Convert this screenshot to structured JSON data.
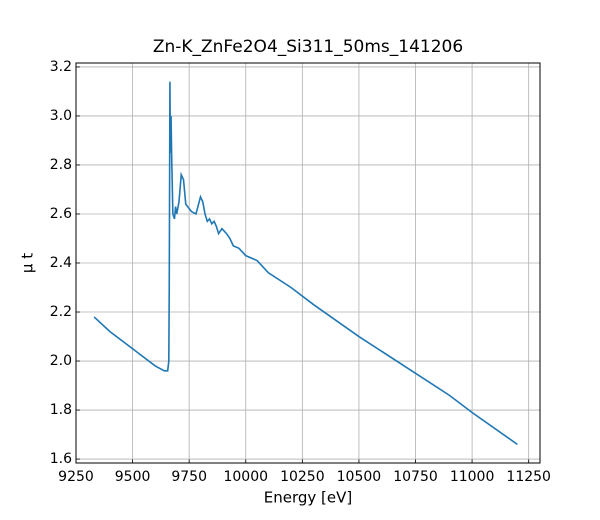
{
  "chart_data": {
    "type": "line",
    "title": "Zn-K_ZnFe2O4_Si311_50ms_141206",
    "x_label": "Energy [eV]",
    "y_label": "μ t",
    "x": [
      9330,
      9400,
      9500,
      9600,
      9640,
      9655,
      9660,
      9662,
      9665,
      9667,
      9670,
      9673,
      9678,
      9685,
      9690,
      9695,
      9705,
      9715,
      9725,
      9735,
      9760,
      9780,
      9800,
      9810,
      9820,
      9830,
      9840,
      9850,
      9860,
      9870,
      9880,
      9895,
      9915,
      9930,
      9945,
      9970,
      10000,
      10050,
      10100,
      10200,
      10300,
      10500,
      10750,
      10900,
      11000,
      11200
    ],
    "series": [
      {
        "name": "Zn-K_ZnFe2O4_Si311_50ms_141206",
        "color": "#1f77b4",
        "values": [
          2.18,
          2.12,
          2.05,
          1.98,
          1.96,
          1.96,
          2.0,
          2.3,
          3.14,
          2.85,
          3.0,
          2.82,
          2.6,
          2.58,
          2.63,
          2.6,
          2.65,
          2.76,
          2.74,
          2.64,
          2.61,
          2.6,
          2.67,
          2.65,
          2.6,
          2.57,
          2.58,
          2.56,
          2.57,
          2.55,
          2.52,
          2.54,
          2.52,
          2.5,
          2.47,
          2.46,
          2.43,
          2.41,
          2.36,
          2.3,
          2.23,
          2.1,
          1.95,
          1.86,
          1.79,
          1.66
        ]
      }
    ],
    "xlim": [
      9250,
      11300
    ],
    "ylim": [
      1.584,
      3.216
    ],
    "xticks": [
      9250,
      9500,
      9750,
      10000,
      10250,
      10500,
      10750,
      11000,
      11250
    ],
    "yticks": [
      1.6,
      1.8,
      {
        "value": 2,
        "label": "2.0"
      },
      2.2,
      2.4,
      2.6,
      2.8,
      {
        "value": 3,
        "label": "3.0"
      },
      3.2
    ],
    "grid": true
  }
}
